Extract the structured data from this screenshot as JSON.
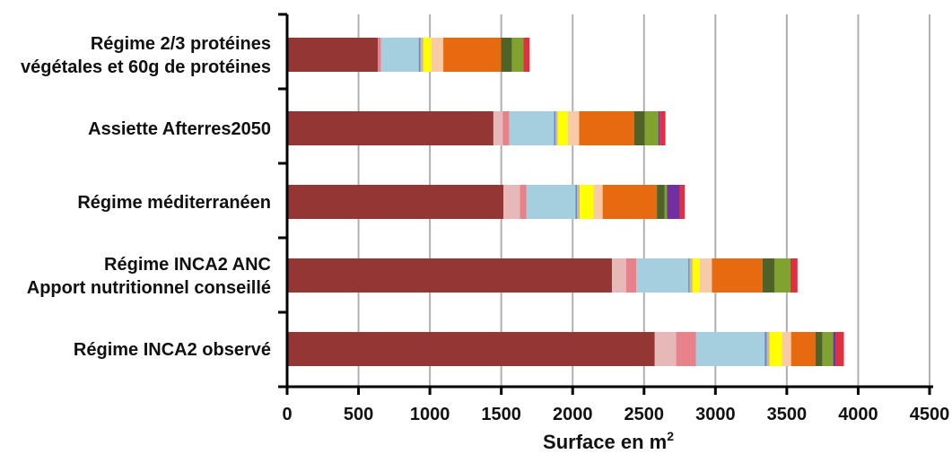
{
  "chart_data": {
    "type": "bar",
    "orientation": "horizontal",
    "stacked": true,
    "title": "",
    "xlabel": "Surface en m",
    "xlabel_superscript": "2",
    "ylabel": "",
    "xlim": [
      0,
      4500
    ],
    "x_ticks": [
      "0",
      "500",
      "1000",
      "1500",
      "2000",
      "2500",
      "3000",
      "3500",
      "4000",
      "4500"
    ],
    "grid": "vertical",
    "legend": "none",
    "categories": [
      [
        "Régime 2/3 protéines",
        "végétales et 60g de protéines"
      ],
      [
        "Assiette Afterres2050"
      ],
      [
        "Régime méditerranéen"
      ],
      [
        "Régime INCA2 ANC",
        "Apport nutritionnel conseillé"
      ],
      [
        "Régime INCA2 observé"
      ]
    ],
    "series": [
      {
        "color": "#943634",
        "values": [
          635,
          1445,
          1515,
          2275,
          2575
        ]
      },
      {
        "color": "#e6b8b7",
        "values": [
          0,
          65,
          115,
          100,
          150
        ]
      },
      {
        "color": "#e8828a",
        "values": [
          22,
          45,
          45,
          70,
          140
        ]
      },
      {
        "color": "#a5cfdf",
        "values": [
          265,
          315,
          345,
          365,
          480
        ]
      },
      {
        "color": "#5b8fd2",
        "values": [
          12,
          10,
          10,
          10,
          15
        ]
      },
      {
        "color": "#d9b48c",
        "values": [
          20,
          15,
          20,
          20,
          20
        ]
      },
      {
        "color": "#ffff00",
        "values": [
          55,
          70,
          95,
          50,
          85
        ]
      },
      {
        "color": "#f8cba8",
        "values": [
          85,
          80,
          65,
          85,
          65
        ]
      },
      {
        "color": "#e86a10",
        "values": [
          405,
          385,
          380,
          355,
          170
        ]
      },
      {
        "color": "#4f6228",
        "values": [
          75,
          75,
          55,
          85,
          50
        ]
      },
      {
        "color": "#7fa32e",
        "values": [
          80,
          95,
          15,
          110,
          75
        ]
      },
      {
        "color": "#7030a0",
        "values": [
          0,
          10,
          90,
          0,
          20
        ]
      },
      {
        "color": "#e03040",
        "values": [
          45,
          40,
          35,
          50,
          55
        ]
      }
    ]
  }
}
